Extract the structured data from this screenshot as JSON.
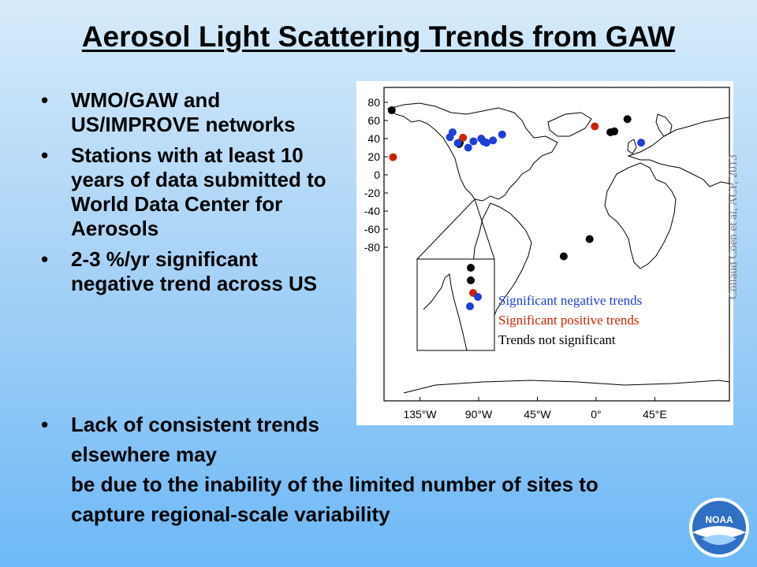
{
  "title": "Aerosol Light Scattering Trends from GAW",
  "bullet_symbol": "•",
  "bullets": [
    "WMO/GAW and US/IMPROVE networks",
    "Stations with at least 10 years of data submitted to World Data Center for Aerosols",
    "2-3 %/yr significant negative trend across US"
  ],
  "bullet4": {
    "line1": "Lack of consistent trends elsewhere may",
    "rest": "be due to the inability of the limited number of sites to capture regional-scale variability"
  },
  "credit": "Collaud Coen et al, ACP, 2013",
  "logo_text": "NOAA",
  "map": {
    "y_ticks": [
      "80",
      "60",
      "40",
      "20",
      "0",
      "-20",
      "-40",
      "-60",
      "-80"
    ],
    "x_ticks": [
      "135°W",
      "90°W",
      "45°W",
      "0°",
      "45°E"
    ],
    "legend": [
      {
        "label": "Significant negative trends",
        "color": "#1f3fd6"
      },
      {
        "label": "Significant positive trends",
        "color": "#cc2200"
      },
      {
        "label": "Trends not significant",
        "color": "#000000"
      }
    ],
    "stations": [
      {
        "lon": -156.6,
        "lat": 71.3,
        "c": "#000000"
      },
      {
        "lon": -155.6,
        "lat": 19.5,
        "c": "#cc2200"
      },
      {
        "lon": -105,
        "lat": 34,
        "c": "#000000"
      },
      {
        "lon": -104.5,
        "lat": 35.5,
        "c": "#000000"
      },
      {
        "lon": -102,
        "lat": 41,
        "c": "#cc2200"
      },
      {
        "lon": -106,
        "lat": 35,
        "c": "#1f3fd6"
      },
      {
        "lon": -110,
        "lat": 47,
        "c": "#1f3fd6"
      },
      {
        "lon": -112,
        "lat": 41.5,
        "c": "#1f3fd6"
      },
      {
        "lon": -98,
        "lat": 30,
        "c": "#1f3fd6"
      },
      {
        "lon": -94,
        "lat": 37,
        "c": "#1f3fd6"
      },
      {
        "lon": -88,
        "lat": 40,
        "c": "#1f3fd6"
      },
      {
        "lon": -86,
        "lat": 36.5,
        "c": "#1f3fd6"
      },
      {
        "lon": -84,
        "lat": 35.5,
        "c": "#1f3fd6"
      },
      {
        "lon": -79,
        "lat": 38,
        "c": "#1f3fd6"
      },
      {
        "lon": -72,
        "lat": 44.5,
        "c": "#1f3fd6"
      },
      {
        "lon": -1,
        "lat": 53.5,
        "c": "#cc2200"
      },
      {
        "lon": 24,
        "lat": 61.5,
        "c": "#000000"
      },
      {
        "lon": 11,
        "lat": 47,
        "c": "#000000"
      },
      {
        "lon": 14,
        "lat": 48,
        "c": "#000000"
      },
      {
        "lon": 34.5,
        "lat": 35.5,
        "c": "#1f3fd6"
      },
      {
        "lon": -5,
        "lat": -71,
        "c": "#000000"
      },
      {
        "lon": -24.8,
        "lat": -90,
        "c": "#000000"
      }
    ],
    "inset_stations": [
      {
        "c": "#000000"
      },
      {
        "c": "#000000"
      },
      {
        "c": "#cc2200"
      },
      {
        "c": "#1f3fd6"
      },
      {
        "c": "#1f3fd6"
      }
    ]
  }
}
